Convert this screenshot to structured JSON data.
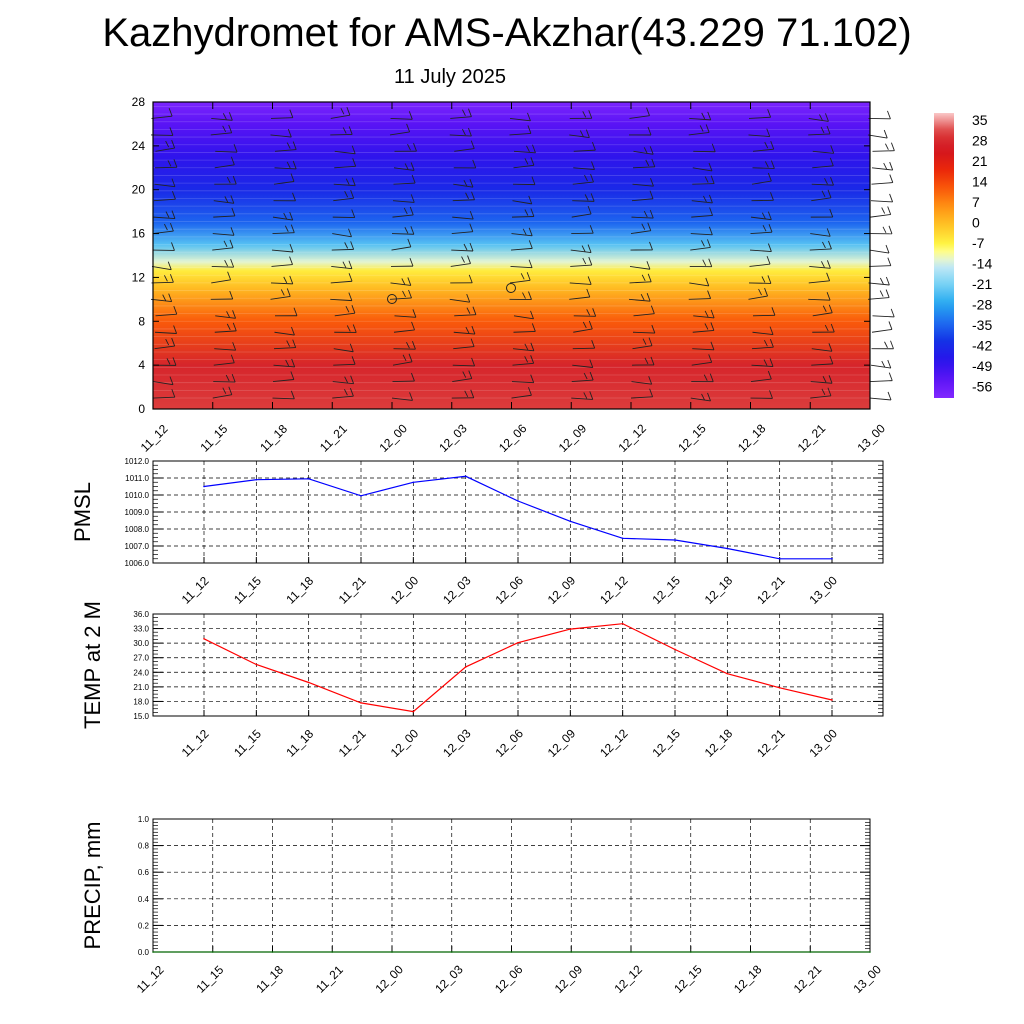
{
  "header": {
    "title": "Kazhydromet for AMS-Akzhar(43.229 71.102)",
    "date": "11 July 2025"
  },
  "colors": {
    "pmsl_line": "#0000ff",
    "temp_line": "#ff0000",
    "precip_line": "#006400"
  },
  "chart_data": [
    {
      "type": "heatmap",
      "name": "vertical-temperature-section",
      "x_labels": [
        "11_12",
        "11_15",
        "11_18",
        "11_21",
        "12_00",
        "12_03",
        "12_06",
        "12_09",
        "12_12",
        "12_15",
        "12_18",
        "12_21",
        "13_00"
      ],
      "y_ticks": [
        "0",
        "4",
        "8",
        "12",
        "16",
        "20",
        "24",
        "28"
      ],
      "ylim": [
        0,
        28
      ],
      "colorbar_labels": [
        "35",
        "28",
        "21",
        "14",
        "7",
        "0",
        "-7",
        "-14",
        "-21",
        "-28",
        "-35",
        "-42",
        "-49",
        "-56"
      ],
      "colorbar_range": [
        -63,
        42
      ],
      "temperature_levels": [
        {
          "level": 0,
          "value": 35
        },
        {
          "level": 4,
          "value": 31
        },
        {
          "level": 8,
          "value": 14
        },
        {
          "level": 11,
          "value": 2
        },
        {
          "level": 12.6,
          "value": -5
        },
        {
          "level": 13.4,
          "value": -12
        },
        {
          "level": 15,
          "value": -24
        },
        {
          "level": 17,
          "value": -36
        },
        {
          "level": 20,
          "value": -44
        },
        {
          "level": 23,
          "value": -50
        },
        {
          "level": 26,
          "value": -56
        },
        {
          "level": 28,
          "value": -62
        }
      ],
      "grid": false
    },
    {
      "type": "line",
      "name": "pmsl",
      "ylabel": "PMSL",
      "x_labels": [
        "11_12",
        "11_15",
        "11_18",
        "11_21",
        "12_00",
        "12_03",
        "12_06",
        "12_09",
        "12_12",
        "12_15",
        "12_18",
        "12_21",
        "13_00"
      ],
      "y_ticks": [
        "1006.0",
        "1007.0",
        "1008.0",
        "1009.0",
        "1010.0",
        "1011.0",
        "1012.0"
      ],
      "ylim": [
        1006,
        1012
      ],
      "values": [
        1010.5,
        1010.9,
        1010.95,
        1009.95,
        1010.75,
        1011.1,
        1009.65,
        1008.45,
        1007.45,
        1007.35,
        1006.85,
        1006.25,
        1006.25
      ],
      "grid": true
    },
    {
      "type": "line",
      "name": "temp-2m",
      "ylabel": "TEMP at 2 M",
      "x_labels": [
        "11_12",
        "11_15",
        "11_18",
        "11_21",
        "12_00",
        "12_03",
        "12_06",
        "12_09",
        "12_12",
        "12_15",
        "12_18",
        "12_21",
        "13_00"
      ],
      "y_ticks": [
        "15.0",
        "18.0",
        "21.0",
        "24.0",
        "27.0",
        "30.0",
        "33.0",
        "36.0"
      ],
      "ylim": [
        15,
        36
      ],
      "values": [
        30.9,
        25.6,
        21.9,
        17.7,
        15.9,
        25.1,
        30.1,
        32.9,
        34.0,
        28.7,
        23.7,
        20.8,
        18.3
      ],
      "grid": true
    },
    {
      "type": "line",
      "name": "precip",
      "ylabel": "PRECIP, mm",
      "x_labels": [
        "11_12",
        "11_15",
        "11_18",
        "11_21",
        "12_00",
        "12_03",
        "12_06",
        "12_09",
        "12_12",
        "12_15",
        "12_18",
        "12_21",
        "13_00"
      ],
      "y_ticks": [
        "0.0",
        "0.2",
        "0.4",
        "0.6",
        "0.8",
        "1.0"
      ],
      "ylim": [
        0,
        1
      ],
      "values": [
        0,
        0,
        0,
        0,
        0,
        0,
        0,
        0,
        0,
        0,
        0,
        0,
        0
      ],
      "grid": true
    }
  ]
}
